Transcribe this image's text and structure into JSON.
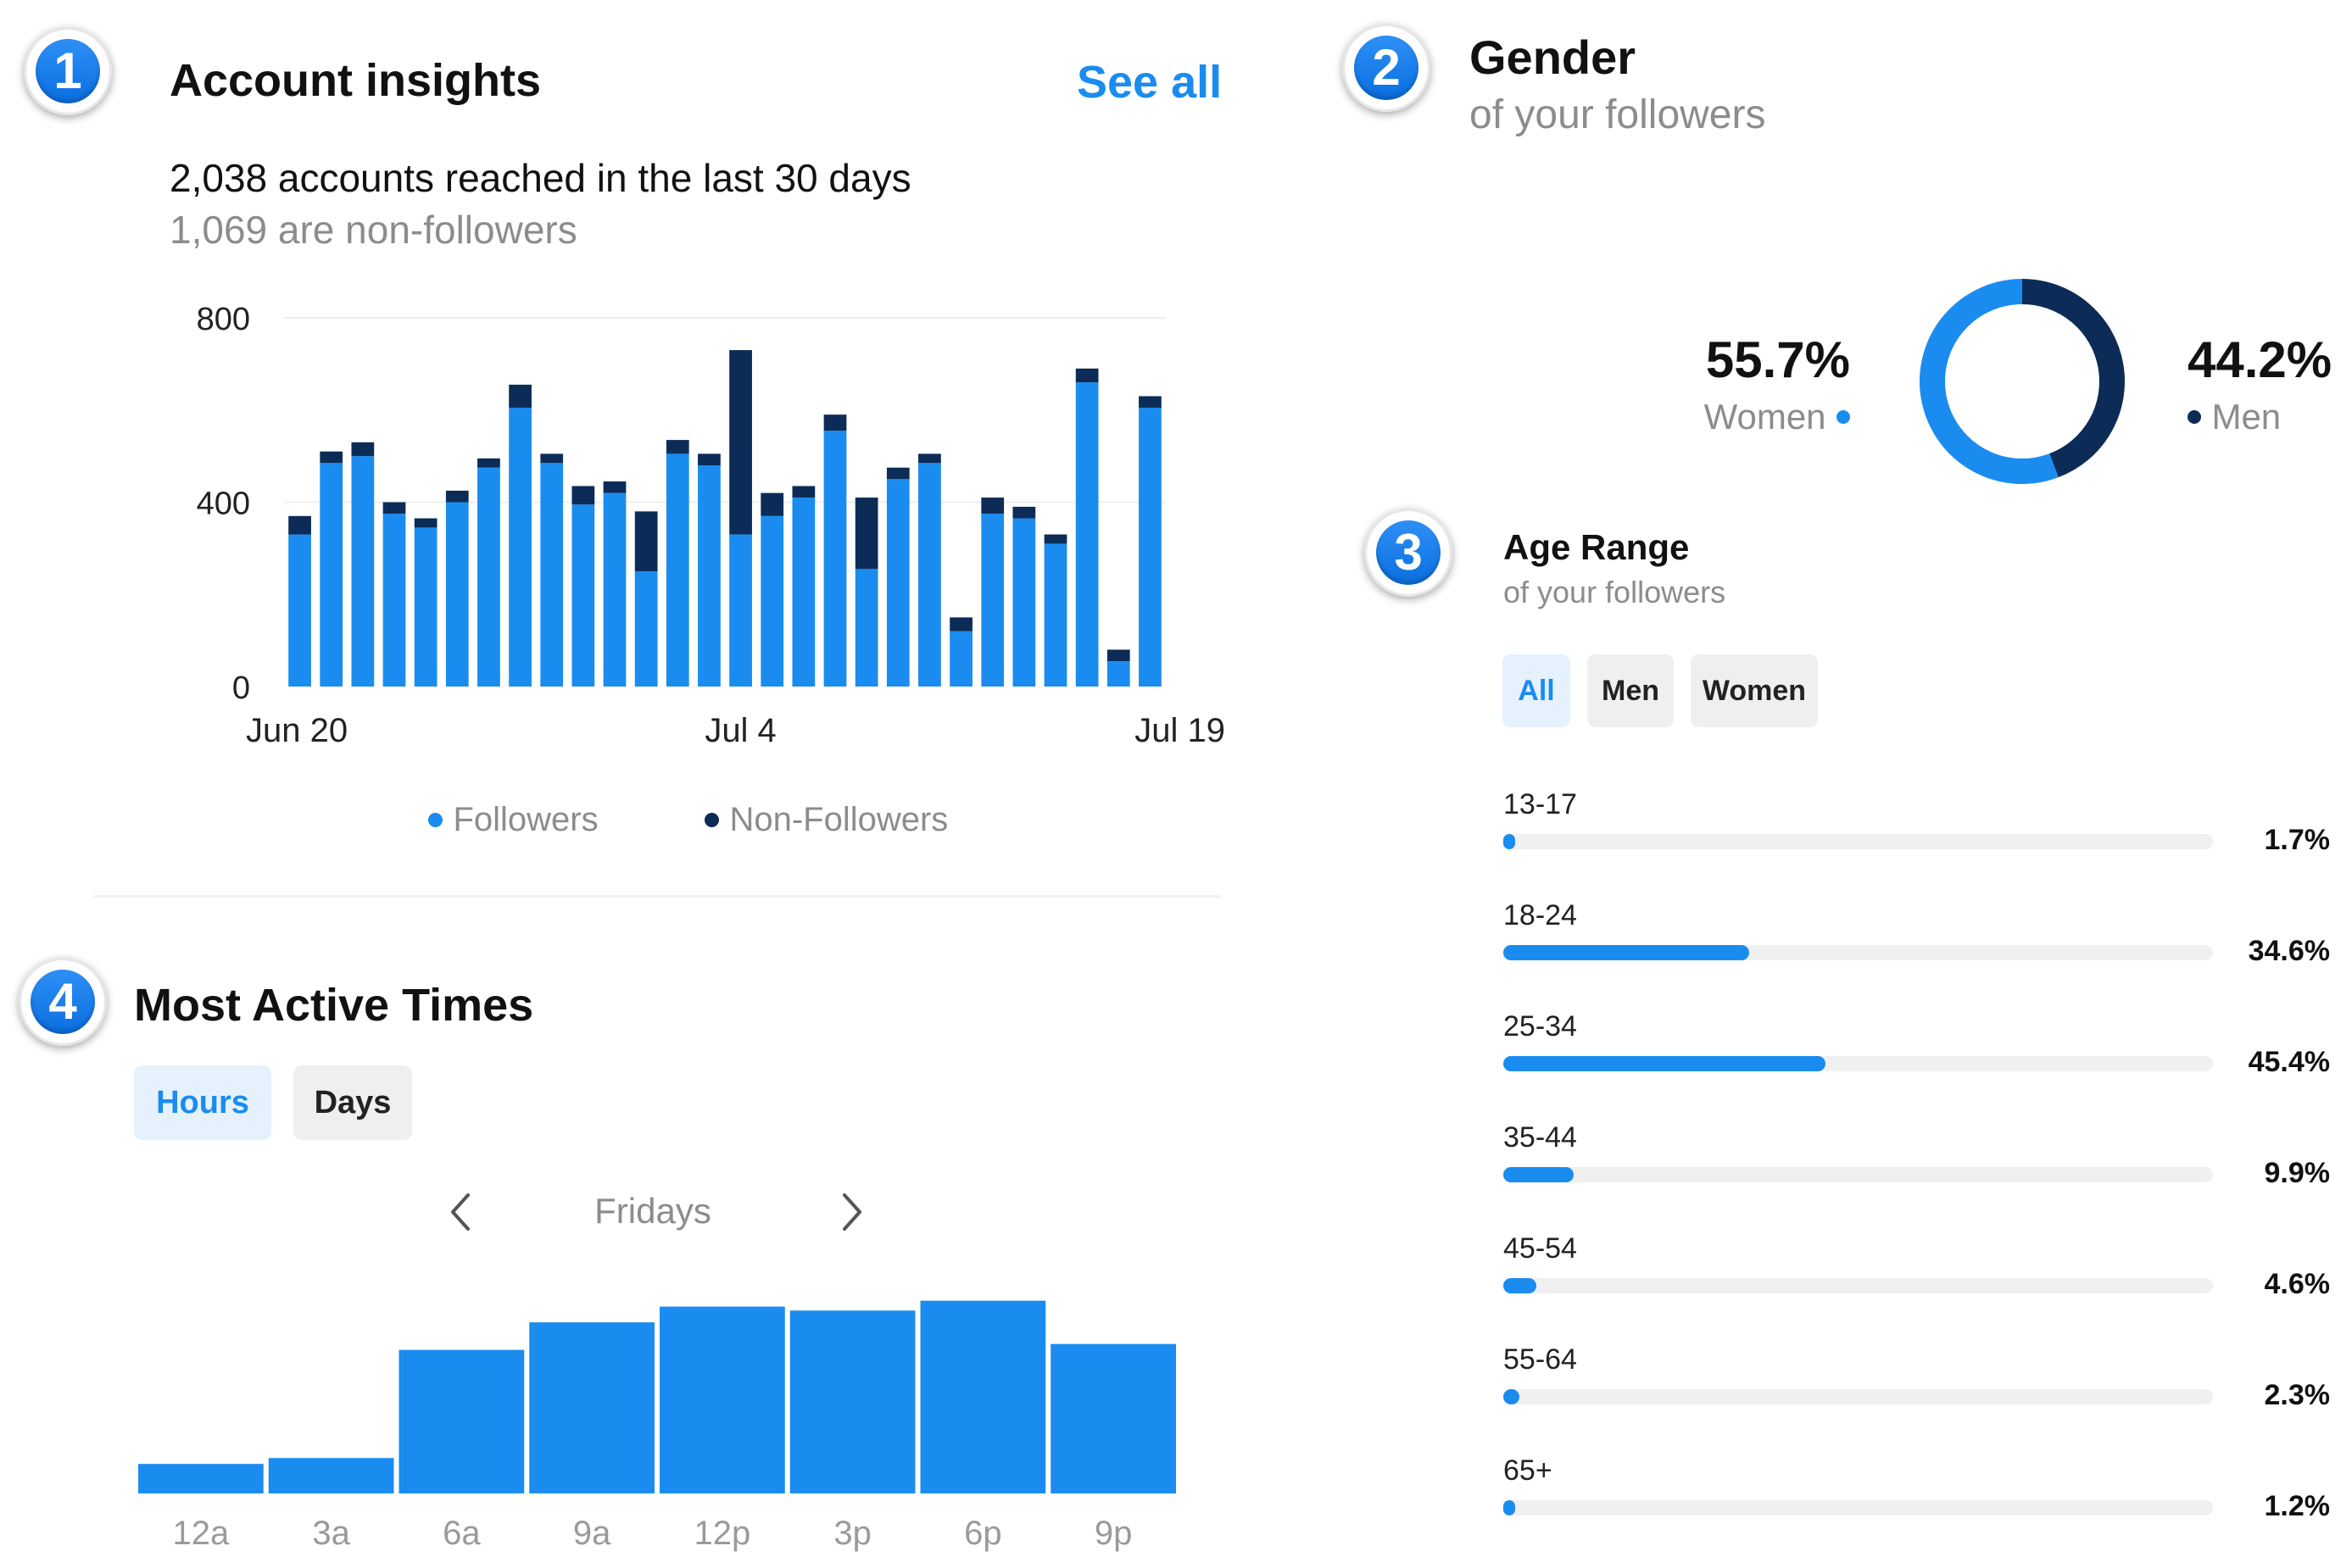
{
  "section1": {
    "badge": "1",
    "title": "Account insights",
    "see_all": "See all",
    "reach_text": "2,038 accounts reached in the last 30 days",
    "non_followers_text": "1,069 are non-followers"
  },
  "section2": {
    "badge": "2",
    "title": "Gender",
    "subtitle": "of your followers",
    "women_pct": "55.7%",
    "women_label": "Women",
    "men_pct": "44.2%",
    "men_label": "Men"
  },
  "section3": {
    "badge": "3",
    "title": "Age Range",
    "subtitle": "of your followers",
    "filters": [
      "All",
      "Men",
      "Women"
    ],
    "active_filter": "All"
  },
  "section4": {
    "badge": "4",
    "title": "Most Active Times",
    "tabs": [
      "Hours",
      "Days"
    ],
    "active_tab": "Hours",
    "day_label": "Fridays",
    "prev_icon": "chevron-left-icon",
    "next_icon": "chevron-right-icon"
  },
  "colors": {
    "followers": "#1a8cf0",
    "non_followers": "#0c2c57",
    "accent": "#1a8cf0",
    "track": "#f0f0f0"
  },
  "chart_data": [
    {
      "type": "bar",
      "stacked": true,
      "x_labels": [
        "Jun 20",
        "Jul 4",
        "Jul 19"
      ],
      "y_ticks": [
        0,
        400,
        800
      ],
      "ylim": [
        0,
        800
      ],
      "grid": true,
      "legend_position": "bottom",
      "series": [
        {
          "name": "Followers",
          "values": [
            330,
            485,
            500,
            375,
            345,
            400,
            475,
            605,
            485,
            395,
            420,
            250,
            505,
            480,
            330,
            370,
            410,
            555,
            255,
            450,
            485,
            120,
            375,
            365,
            310,
            660,
            55,
            605
          ]
        },
        {
          "name": "Non-Followers",
          "values": [
            40,
            25,
            30,
            25,
            20,
            25,
            20,
            50,
            20,
            40,
            25,
            130,
            30,
            25,
            400,
            50,
            25,
            35,
            155,
            25,
            20,
            30,
            35,
            25,
            20,
            30,
            25,
            25
          ]
        }
      ]
    },
    {
      "type": "pie",
      "donut": true,
      "slices": [
        {
          "name": "Women",
          "value": 55.7
        },
        {
          "name": "Men",
          "value": 44.2
        }
      ]
    },
    {
      "type": "bar",
      "orientation": "horizontal",
      "categories": [
        "13-17",
        "18-24",
        "25-34",
        "35-44",
        "45-54",
        "55-64",
        "65+"
      ],
      "values": [
        1.7,
        34.6,
        45.4,
        9.9,
        4.6,
        2.3,
        1.2
      ],
      "value_labels": [
        "1.7%",
        "34.6%",
        "45.4%",
        "9.9%",
        "4.6%",
        "2.3%",
        "1.2%"
      ],
      "xlim": [
        0,
        100
      ]
    },
    {
      "type": "bar",
      "categories": [
        "12a",
        "3a",
        "6a",
        "9a",
        "12p",
        "3p",
        "6p",
        "9p"
      ],
      "values": [
        15,
        18,
        73,
        87,
        95,
        93,
        98,
        76
      ],
      "ylim": [
        0,
        100
      ]
    }
  ]
}
